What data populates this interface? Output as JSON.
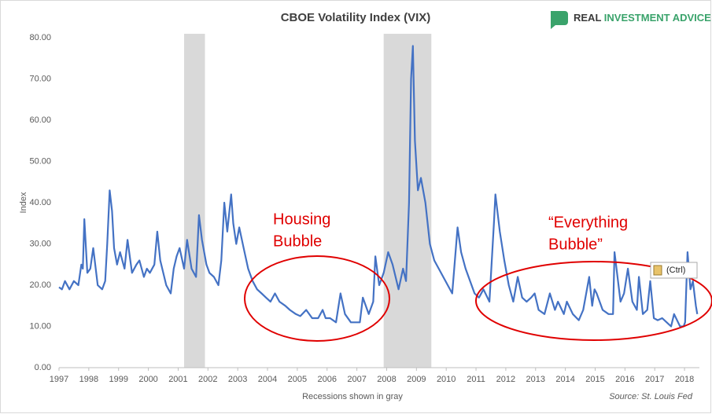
{
  "chart_data": {
    "type": "line",
    "title": "CBOE Volatility Index (VIX)",
    "y_label": "Index",
    "footer": "Recessions shown in gray",
    "source": "Source: St. Louis Fed",
    "logo": {
      "first": "REAL",
      "rest": "INVESTMENT ADVICE"
    },
    "annotations": [
      {
        "lines": [
          "Housing",
          "Bubble"
        ],
        "color": "#e00000"
      },
      {
        "lines": [
          "“Everything",
          "Bubble”"
        ],
        "color": "#e00000"
      }
    ],
    "paste_button": "(Ctrl)",
    "recessions": [
      [
        2001.2,
        2001.9
      ],
      [
        2007.9,
        2009.5
      ]
    ],
    "recession_color": "#d9d9d9",
    "xlim": [
      1997,
      2018.5
    ],
    "xticks": [
      1997,
      1998,
      1999,
      2000,
      2001,
      2002,
      2003,
      2004,
      2005,
      2006,
      2007,
      2008,
      2009,
      2010,
      2011,
      2012,
      2013,
      2014,
      2015,
      2016,
      2017,
      2018
    ],
    "ylim": [
      0,
      80
    ],
    "yticks": [
      {
        "value": 0,
        "label": "0.00"
      },
      {
        "value": 10,
        "label": "10.00"
      },
      {
        "value": 20,
        "label": "20.00"
      },
      {
        "value": 30,
        "label": "30.00"
      },
      {
        "value": 40,
        "label": "40.00"
      },
      {
        "value": 50,
        "label": "50.00"
      },
      {
        "value": 60,
        "label": "60.00"
      },
      {
        "value": 70,
        "label": "70.00"
      },
      {
        "value": 80,
        "label": "80.00"
      }
    ],
    "grid": false,
    "x": [
      1997.0,
      1997.1,
      1997.2,
      1997.35,
      1997.5,
      1997.65,
      1997.75,
      1997.8,
      1997.85,
      1997.95,
      1998.05,
      1998.15,
      1998.3,
      1998.45,
      1998.55,
      1998.62,
      1998.7,
      1998.78,
      1998.85,
      1998.95,
      1999.05,
      1999.2,
      1999.3,
      1999.45,
      1999.6,
      1999.7,
      1999.85,
      1999.95,
      2000.05,
      2000.2,
      2000.3,
      2000.4,
      2000.6,
      2000.75,
      2000.85,
      2000.95,
      2001.05,
      2001.2,
      2001.3,
      2001.45,
      2001.6,
      2001.7,
      2001.8,
      2001.95,
      2002.05,
      2002.2,
      2002.35,
      2002.45,
      2002.55,
      2002.65,
      2002.78,
      2002.85,
      2002.95,
      2003.05,
      2003.2,
      2003.35,
      2003.5,
      2003.65,
      2003.8,
      2003.95,
      2004.1,
      2004.25,
      2004.4,
      2004.6,
      2004.75,
      2004.95,
      2005.1,
      2005.3,
      2005.5,
      2005.7,
      2005.85,
      2005.95,
      2006.1,
      2006.3,
      2006.45,
      2006.6,
      2006.8,
      2006.95,
      2007.1,
      2007.2,
      2007.4,
      2007.55,
      2007.62,
      2007.75,
      2007.9,
      2008.05,
      2008.2,
      2008.4,
      2008.55,
      2008.65,
      2008.75,
      2008.82,
      2008.88,
      2008.95,
      2009.05,
      2009.15,
      2009.3,
      2009.45,
      2009.6,
      2009.75,
      2009.9,
      2010.05,
      2010.2,
      2010.38,
      2010.5,
      2010.65,
      2010.8,
      2010.95,
      2011.1,
      2011.25,
      2011.45,
      2011.6,
      2011.65,
      2011.8,
      2011.95,
      2012.1,
      2012.25,
      2012.4,
      2012.55,
      2012.7,
      2012.85,
      2012.97,
      2013.1,
      2013.3,
      2013.48,
      2013.65,
      2013.75,
      2013.95,
      2014.05,
      2014.25,
      2014.45,
      2014.6,
      2014.8,
      2014.9,
      2014.98,
      2015.05,
      2015.25,
      2015.45,
      2015.6,
      2015.65,
      2015.75,
      2015.85,
      2015.97,
      2016.1,
      2016.25,
      2016.4,
      2016.47,
      2016.6,
      2016.75,
      2016.85,
      2016.97,
      2017.1,
      2017.25,
      2017.4,
      2017.55,
      2017.65,
      2017.85,
      2017.97,
      2018.02,
      2018.1,
      2018.2,
      2018.28,
      2018.38,
      2018.43
    ],
    "series": [
      {
        "name": "VIX",
        "color": "#4472c4",
        "values": [
          19.5,
          19,
          21,
          19,
          21,
          20,
          25,
          24,
          36,
          23,
          24,
          29,
          20,
          19,
          21,
          30,
          43,
          38,
          29,
          25,
          28,
          24,
          31,
          23,
          25,
          26,
          22,
          24,
          23,
          25,
          33,
          26,
          20,
          18,
          24,
          27,
          29,
          24,
          31,
          24,
          22,
          37,
          31,
          25,
          23,
          22,
          20,
          26,
          40,
          33,
          42,
          35,
          30,
          34,
          29,
          24,
          21,
          19,
          18,
          17,
          16,
          18,
          16,
          15,
          14,
          13,
          12.5,
          14,
          12,
          12,
          14,
          12,
          12,
          11,
          18,
          13,
          11,
          11,
          11,
          17,
          13,
          16,
          27,
          20,
          23,
          28,
          25,
          19,
          24,
          21,
          40,
          70,
          78,
          55,
          43,
          46,
          40,
          30,
          26,
          24,
          22,
          20,
          18,
          34,
          28,
          24,
          21,
          18,
          17,
          19,
          16,
          35,
          42,
          33,
          26,
          20,
          16,
          22,
          17,
          16,
          17,
          18,
          14,
          13,
          18,
          14,
          16,
          13,
          16,
          13,
          11.5,
          14,
          22,
          15,
          19,
          18,
          14,
          13,
          13,
          28,
          22,
          16,
          18,
          24,
          16,
          14,
          22,
          13,
          14,
          21,
          12,
          11.5,
          12,
          11,
          10,
          13,
          10,
          10,
          11,
          28,
          19,
          21,
          15,
          13
        ]
      }
    ]
  }
}
